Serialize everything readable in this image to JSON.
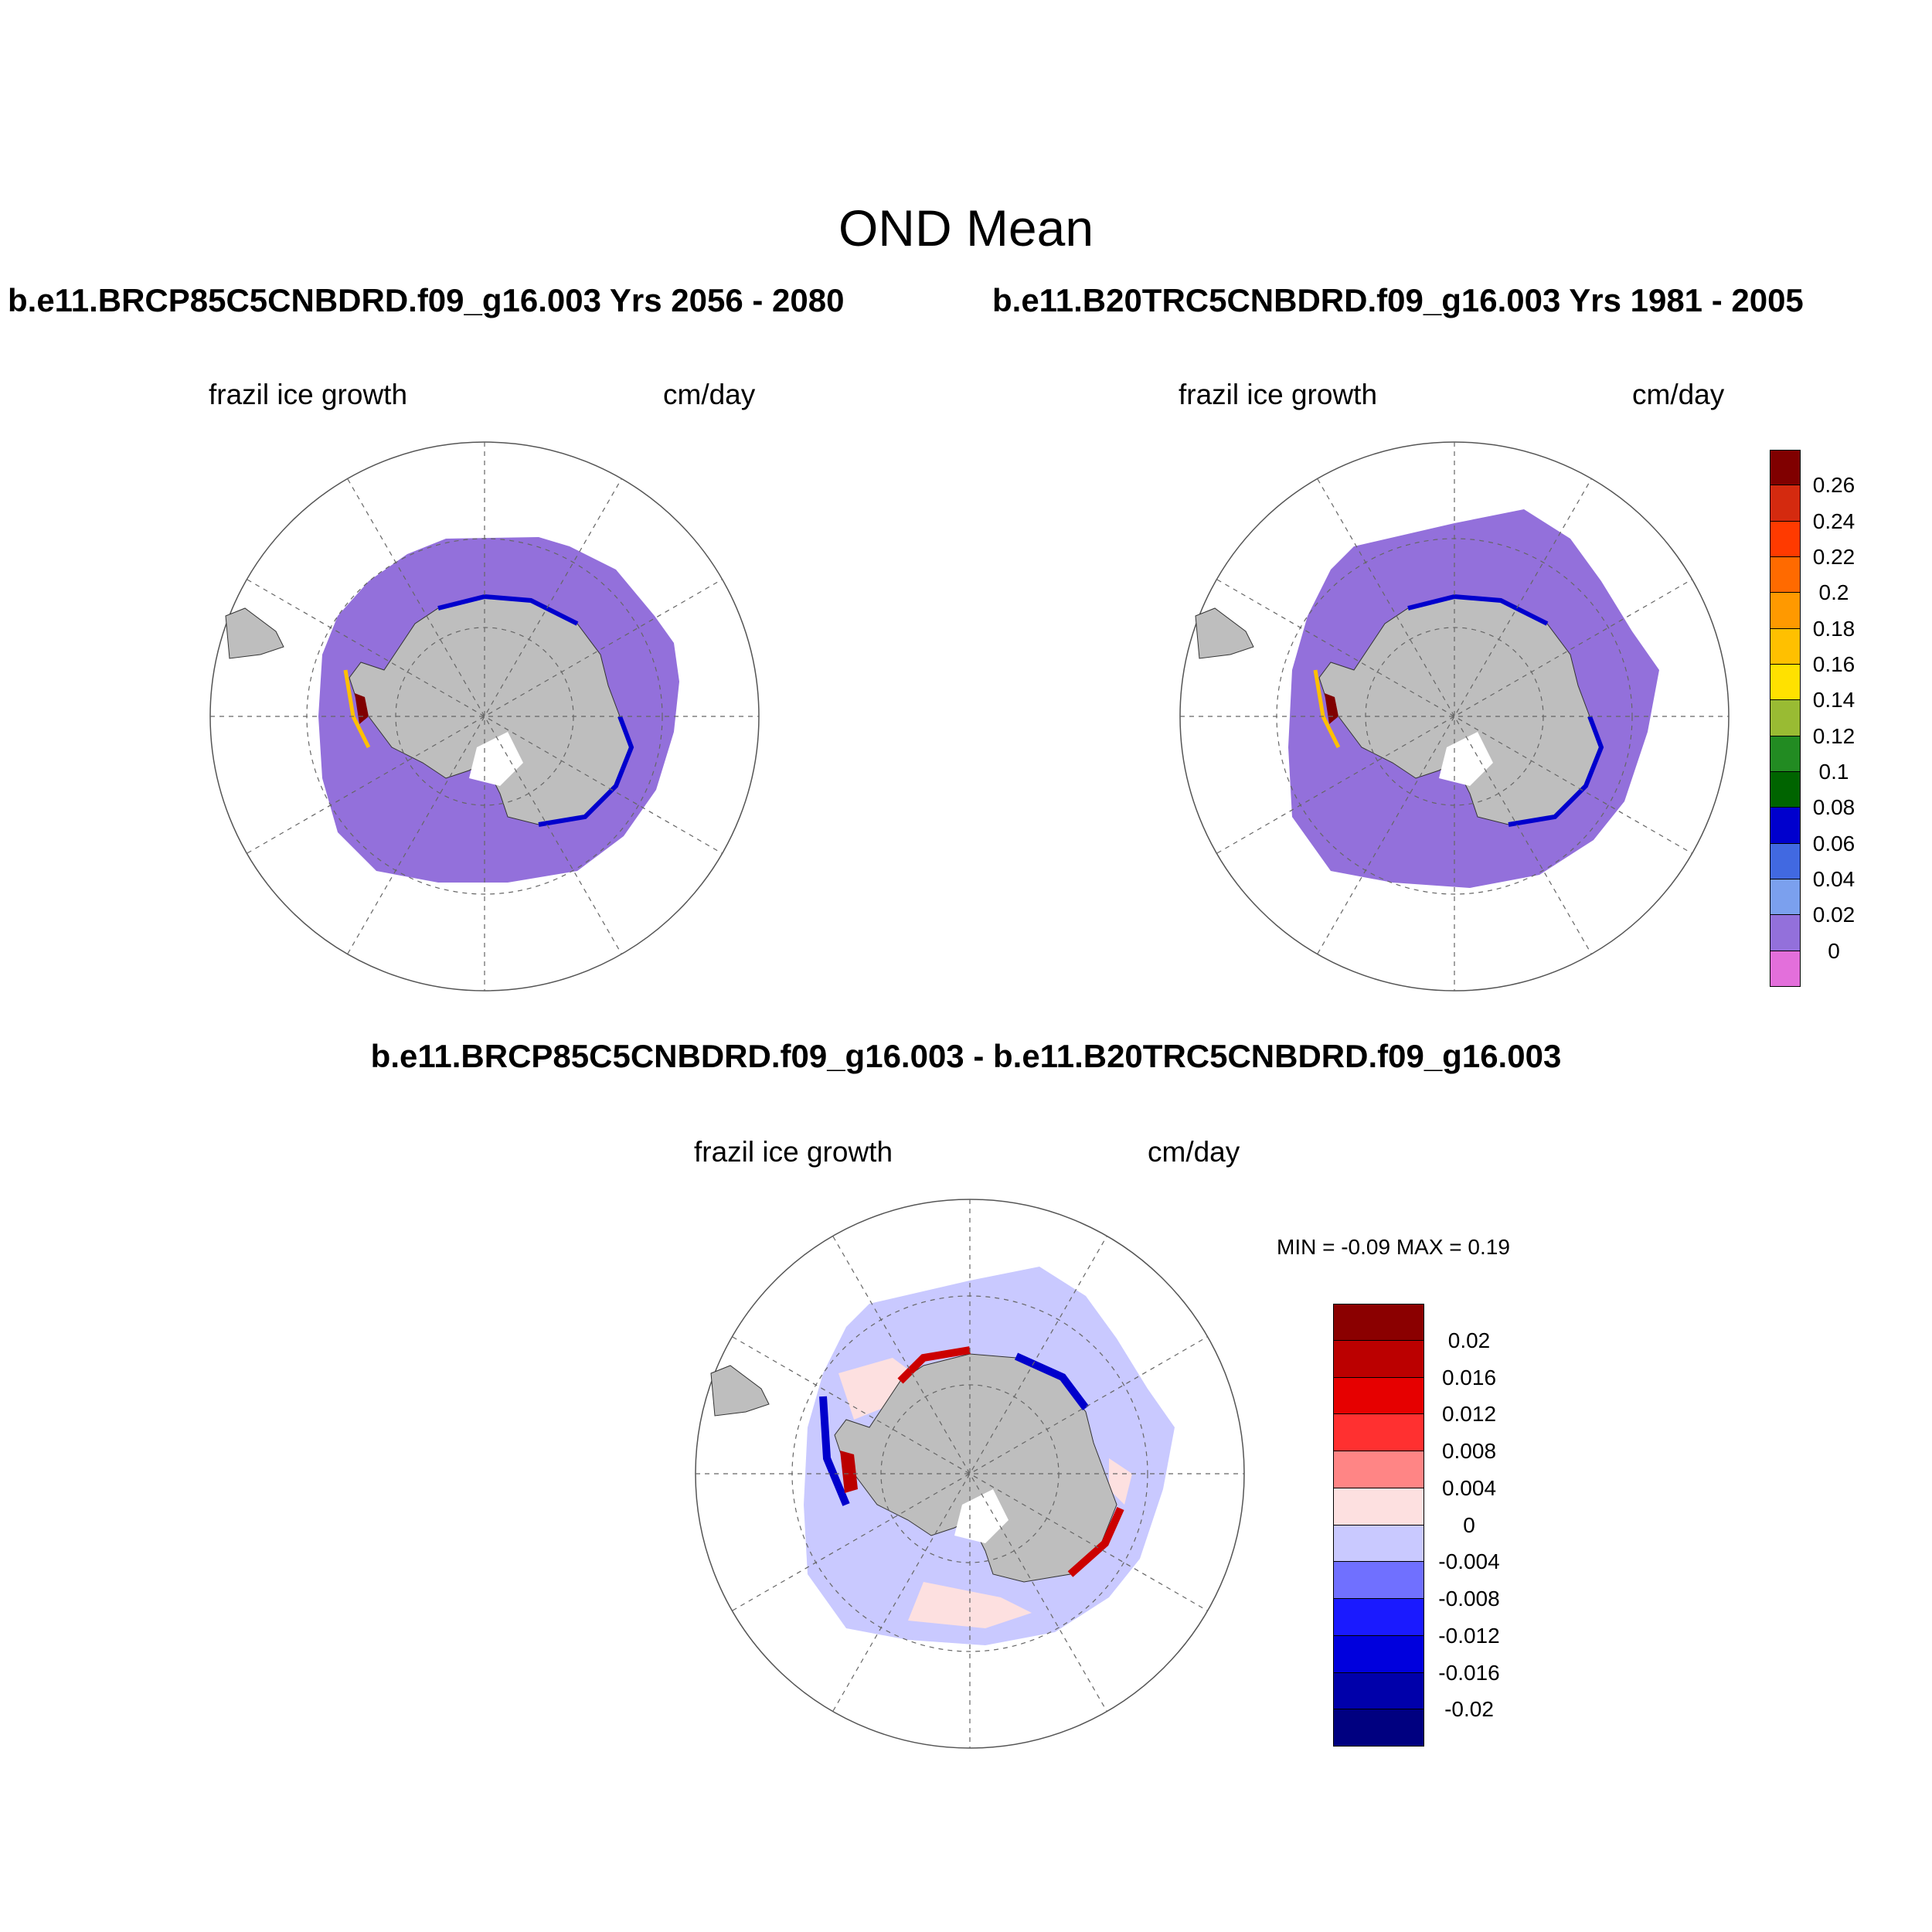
{
  "figure": {
    "title": "OND Mean",
    "case_titles": [
      "b.e11.BRCP85C5CNBDRD.f09_g16.003  Yrs 2056 - 2080",
      "b.e11.B20TRC5CNBDRD.f09_g16.003  Yrs 1981 - 2005"
    ],
    "diff_title": "b.e11.BRCP85C5CNBDRD.f09_g16.003 - b.e11.B20TRC5CNBDRD.f09_g16.003"
  },
  "panels": [
    {
      "variable": "frazil ice growth",
      "units": "cm/day"
    },
    {
      "variable": "frazil ice growth",
      "units": "cm/day"
    },
    {
      "variable": "frazil ice growth",
      "units": "cm/day",
      "min_max": "MIN =  -0.09 MAX =   0.19"
    }
  ],
  "colorbar_main": {
    "labels": [
      "0.26",
      "0.24",
      "0.22",
      "0.2",
      "0.18",
      "0.16",
      "0.14",
      "0.12",
      "0.1",
      "0.08",
      "0.06",
      "0.04",
      "0.02",
      "0"
    ],
    "colors": [
      "#800000",
      "#d42a0f",
      "#ff3a00",
      "#ff6a00",
      "#ff9900",
      "#ffc000",
      "#ffe100",
      "#99bb33",
      "#228b22",
      "#006400",
      "#0000cd",
      "#4169e1",
      "#7ba0ee",
      "#9370db",
      "#e36fdb"
    ]
  },
  "colorbar_diff": {
    "labels": [
      "0.02",
      "0.016",
      "0.012",
      "0.008",
      "0.004",
      "0",
      "-0.004",
      "-0.008",
      "-0.012",
      "-0.016",
      "-0.02"
    ],
    "colors": [
      "#8b0000",
      "#bb0000",
      "#e60000",
      "#ff3030",
      "#ff8585",
      "#fde0e0",
      "#c9c9ff",
      "#7070ff",
      "#1a1aff",
      "#0000dd",
      "#0000aa",
      "#000080"
    ]
  },
  "map_colors": {
    "land": "#bebebe",
    "ice_fill_main": "#9370db",
    "diff_background": "#c9c9ff",
    "diff_positive": "#fde0e0",
    "diff_strong_pos": "#cc0000",
    "diff_strong_neg": "#0000cc"
  }
}
